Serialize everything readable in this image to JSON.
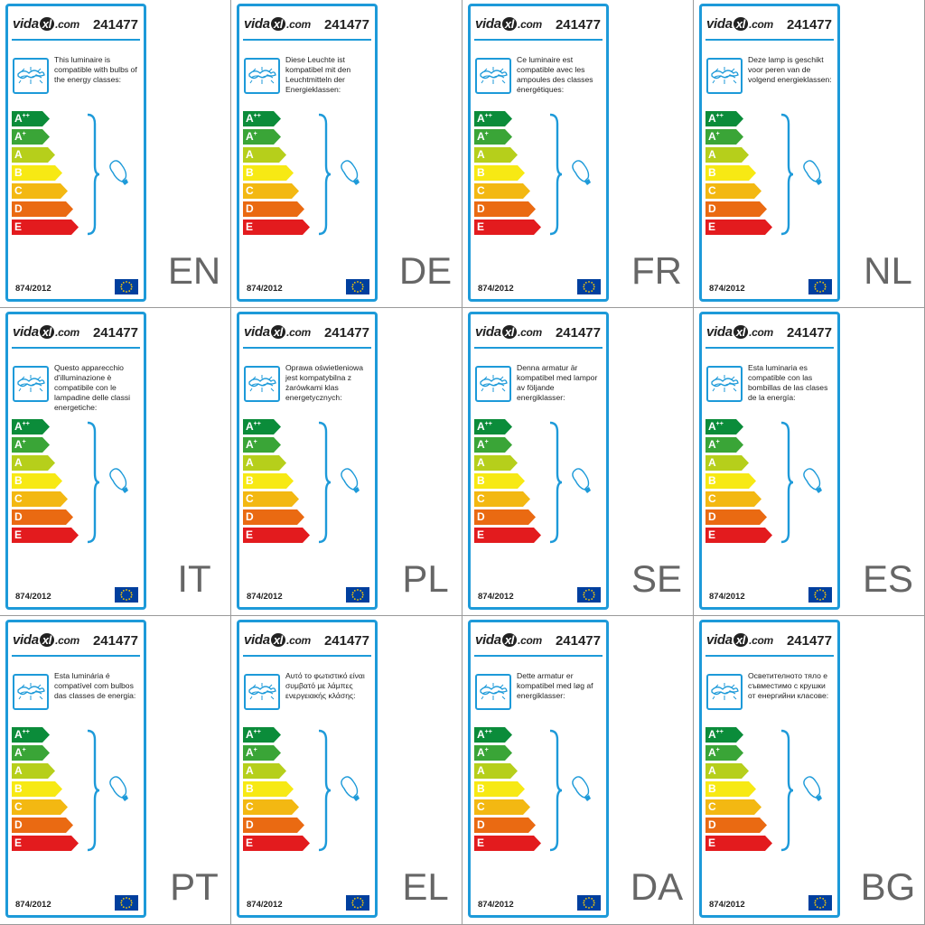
{
  "colors": {
    "frame": "#1d9ad9",
    "class_colors": [
      "#0b8c3a",
      "#3aa537",
      "#b6cf1b",
      "#f7e914",
      "#f3b812",
      "#ea6a12",
      "#e31b1e"
    ],
    "eu_flag": "#003f9e",
    "eu_stars": "#ffcc00"
  },
  "icons": [
    "ceiling-lamp-icon",
    "light-bulb-icon",
    "eu-flag-icon"
  ],
  "common": {
    "brand_prefix": "vida",
    "brand_mark": "xl",
    "brand_suffix": ".com",
    "product_code": "241477",
    "regulation": "874/2012",
    "energy_classes": [
      {
        "letter": "A",
        "sup": "++"
      },
      {
        "letter": "A",
        "sup": "+"
      },
      {
        "letter": "A",
        "sup": ""
      },
      {
        "letter": "B",
        "sup": ""
      },
      {
        "letter": "C",
        "sup": ""
      },
      {
        "letter": "D",
        "sup": ""
      },
      {
        "letter": "E",
        "sup": ""
      }
    ]
  },
  "labels": [
    {
      "lang": "EN",
      "text": "This luminaire is compatible with bulbs of the energy classes:"
    },
    {
      "lang": "DE",
      "text": "Diese Leuchte ist kompatibel mit den Leuchtmitteln der Energieklassen:"
    },
    {
      "lang": "FR",
      "text": "Ce luminaire est compatible avec les ampoules des classes énergétiques:"
    },
    {
      "lang": "NL",
      "text": "Deze lamp is geschikt voor peren van de volgend energieklassen:"
    },
    {
      "lang": "IT",
      "text": "Questo apparecchio d'illuminazione è compatibile con le lampadine delle classi energetiche:"
    },
    {
      "lang": "PL",
      "text": "Oprawa oświetleniowa jest kompatybilna z żarówkami klas energetycznych:"
    },
    {
      "lang": "SE",
      "text": "Denna armatur är kompatibel med lampor av följande energiklasser:"
    },
    {
      "lang": "ES",
      "text": "Esta luminaria es compatible con las bombillas de las clases de la energía:"
    },
    {
      "lang": "PT",
      "text": "Esta luminária é compatível com bulbos das classes de energia:"
    },
    {
      "lang": "EL",
      "text": "Αυτό το φωτιστικό είναι συμβατό με λάμπες ενεργειακής κλάσης:"
    },
    {
      "lang": "DA",
      "text": "Dette armatur er kompatibel med løg af energiklasser:"
    },
    {
      "lang": "BG",
      "text": "Осветителното тяло е съвместимо с крушки от енергийни класове:"
    }
  ]
}
